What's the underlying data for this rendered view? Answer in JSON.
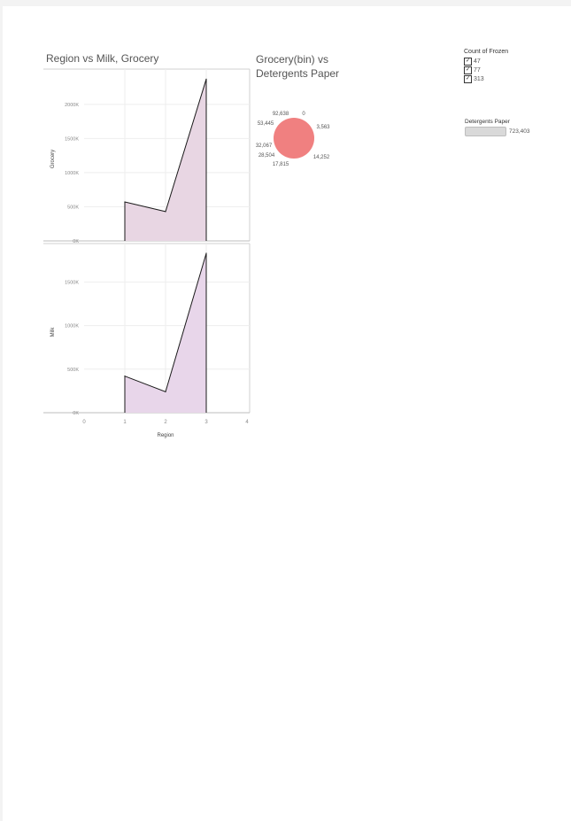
{
  "titles": {
    "left": "Region vs Milk, Grocery",
    "right": "Grocery(bin) vs Detergents Paper"
  },
  "chart_data": [
    {
      "type": "area",
      "x": [
        1,
        2,
        3
      ],
      "xlim": [
        0,
        4
      ],
      "xticks": [
        "0",
        "1",
        "2",
        "3",
        "4"
      ],
      "xlabel": "Region",
      "panels": [
        {
          "ylabel": "Grocery",
          "ylim": [
            0,
            2400000
          ],
          "yticks": [
            0,
            500000,
            1000000,
            1500000,
            2000000
          ],
          "ytick_labels": [
            "0K",
            "500K",
            "1000K",
            "1500K",
            "2000K"
          ],
          "values": [
            570000,
            430000,
            2370000
          ],
          "fill": "#e8d6e3"
        },
        {
          "ylabel": "Milk",
          "ylim": [
            0,
            1850000
          ],
          "yticks": [
            0,
            500000,
            1000000,
            1500000
          ],
          "ytick_labels": [
            "0K",
            "500K",
            "1000K",
            "1500K"
          ],
          "values": [
            420000,
            240000,
            1830000
          ],
          "fill": "#e8d6ea"
        }
      ],
      "grid": true
    },
    {
      "type": "pie",
      "color": "#f08080",
      "labels": [
        "92,638",
        "0",
        "53,445",
        "3,563",
        "32,067",
        "28,504",
        "14,252",
        "17,815"
      ]
    }
  ],
  "legends": {
    "frozen": {
      "title": "Count of Frozen",
      "items": [
        "47",
        "77",
        "313"
      ],
      "check": "✓"
    },
    "detergents": {
      "title": "Detergents Paper",
      "value": "723,403"
    }
  }
}
